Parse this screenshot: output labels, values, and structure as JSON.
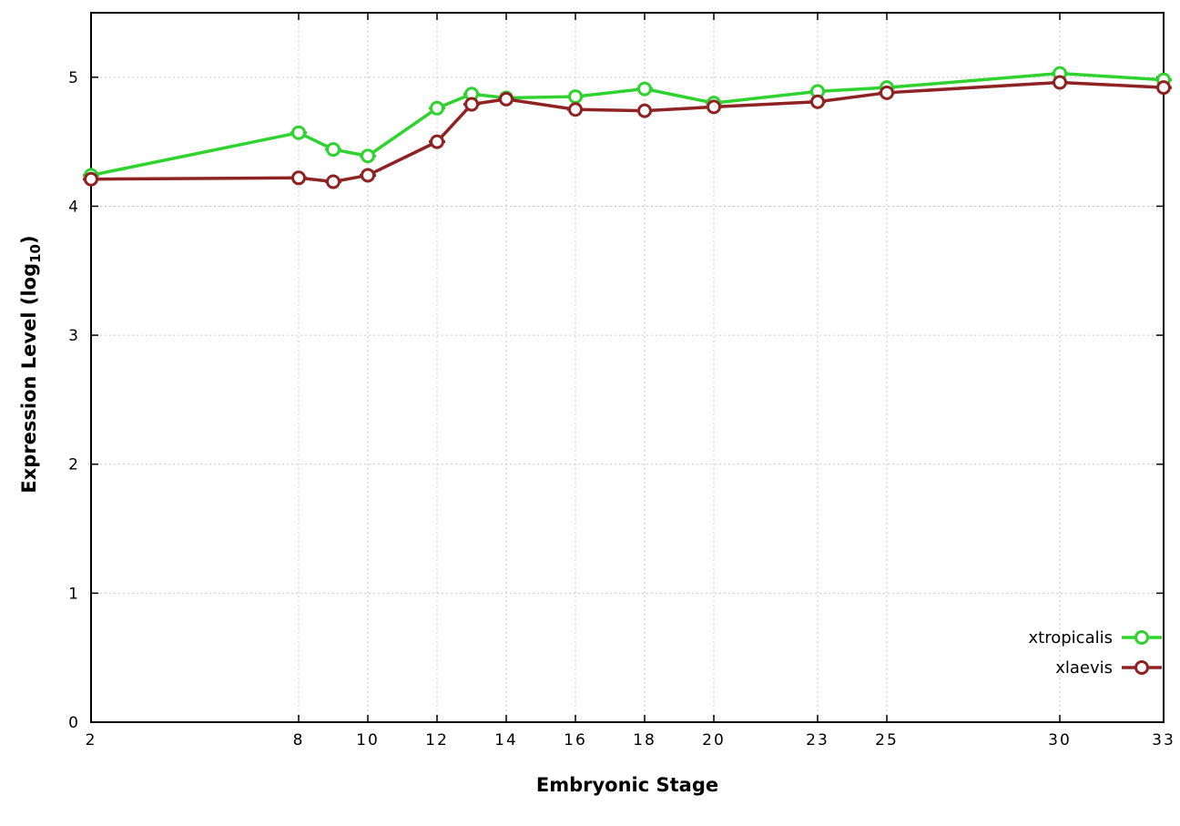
{
  "chart_data": {
    "type": "line",
    "title": "",
    "xlabel": "Embryonic Stage",
    "ylabel": {
      "prefix": "Expression Level (log",
      "sub": "10",
      "suffix": ")"
    },
    "xlim": [
      2,
      33
    ],
    "ylim": [
      0,
      5.5
    ],
    "xticks": [
      2,
      8,
      10,
      12,
      14,
      16,
      18,
      20,
      23,
      25,
      30,
      33
    ],
    "yticks": [
      0,
      1,
      2,
      3,
      4,
      5
    ],
    "grid": true,
    "legend_position": "inside-bottom-right",
    "marker": "open-circle-with-horizontal-errorbar",
    "x": [
      2,
      8,
      9,
      10,
      12,
      13,
      14,
      16,
      18,
      20,
      23,
      25,
      30,
      33
    ],
    "series": [
      {
        "name": "xtropicalis",
        "color": "#2fd32f",
        "values": [
          4.24,
          4.57,
          4.44,
          4.39,
          4.76,
          4.87,
          4.84,
          4.85,
          4.91,
          4.8,
          4.89,
          4.92,
          5.03,
          4.98
        ]
      },
      {
        "name": "xlaevis",
        "color": "#8f2323",
        "values": [
          4.21,
          4.22,
          4.19,
          4.24,
          4.5,
          4.79,
          4.83,
          4.75,
          4.74,
          4.77,
          4.81,
          4.88,
          4.96,
          4.92
        ]
      }
    ]
  }
}
